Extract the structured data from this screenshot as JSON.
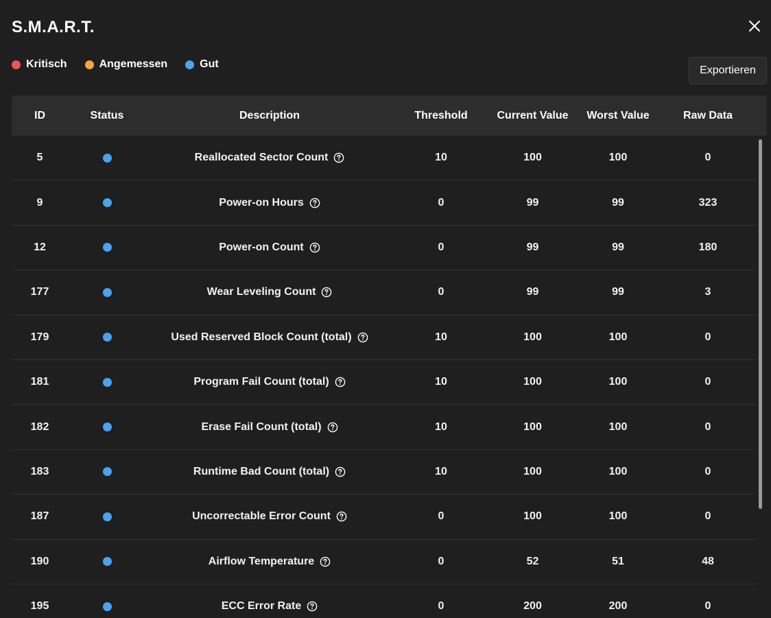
{
  "dialog": {
    "title": "S.M.A.R.T.",
    "export_label": "Exportieren"
  },
  "legend": [
    {
      "label": "Kritisch",
      "color": "#f05454"
    },
    {
      "label": "Angemessen",
      "color": "#f5a442"
    },
    {
      "label": "Gut",
      "color": "#4aa3f2"
    }
  ],
  "table": {
    "headers": {
      "id": "ID",
      "status": "Status",
      "description": "Description",
      "threshold": "Threshold",
      "current": "Current Value",
      "worst": "Worst Value",
      "raw": "Raw Data"
    },
    "rows": [
      {
        "id": "5",
        "status": "Gut",
        "description": "Reallocated Sector Count",
        "threshold": "10",
        "current": "100",
        "worst": "100",
        "raw": "0"
      },
      {
        "id": "9",
        "status": "Gut",
        "description": "Power-on Hours",
        "threshold": "0",
        "current": "99",
        "worst": "99",
        "raw": "323"
      },
      {
        "id": "12",
        "status": "Gut",
        "description": "Power-on Count",
        "threshold": "0",
        "current": "99",
        "worst": "99",
        "raw": "180"
      },
      {
        "id": "177",
        "status": "Gut",
        "description": "Wear Leveling Count",
        "threshold": "0",
        "current": "99",
        "worst": "99",
        "raw": "3"
      },
      {
        "id": "179",
        "status": "Gut",
        "description": "Used Reserved Block Count (total)",
        "threshold": "10",
        "current": "100",
        "worst": "100",
        "raw": "0"
      },
      {
        "id": "181",
        "status": "Gut",
        "description": "Program Fail Count (total)",
        "threshold": "10",
        "current": "100",
        "worst": "100",
        "raw": "0"
      },
      {
        "id": "182",
        "status": "Gut",
        "description": "Erase Fail Count (total)",
        "threshold": "10",
        "current": "100",
        "worst": "100",
        "raw": "0"
      },
      {
        "id": "183",
        "status": "Gut",
        "description": "Runtime Bad Count (total)",
        "threshold": "10",
        "current": "100",
        "worst": "100",
        "raw": "0"
      },
      {
        "id": "187",
        "status": "Gut",
        "description": "Uncorrectable Error Count",
        "threshold": "0",
        "current": "100",
        "worst": "100",
        "raw": "0"
      },
      {
        "id": "190",
        "status": "Gut",
        "description": "Airflow Temperature",
        "threshold": "0",
        "current": "52",
        "worst": "51",
        "raw": "48"
      },
      {
        "id": "195",
        "status": "Gut",
        "description": "ECC Error Rate",
        "threshold": "0",
        "current": "200",
        "worst": "200",
        "raw": "0"
      }
    ]
  },
  "icons": {
    "close": "close-icon",
    "help": "help-circle-icon",
    "status": "status-dot"
  }
}
